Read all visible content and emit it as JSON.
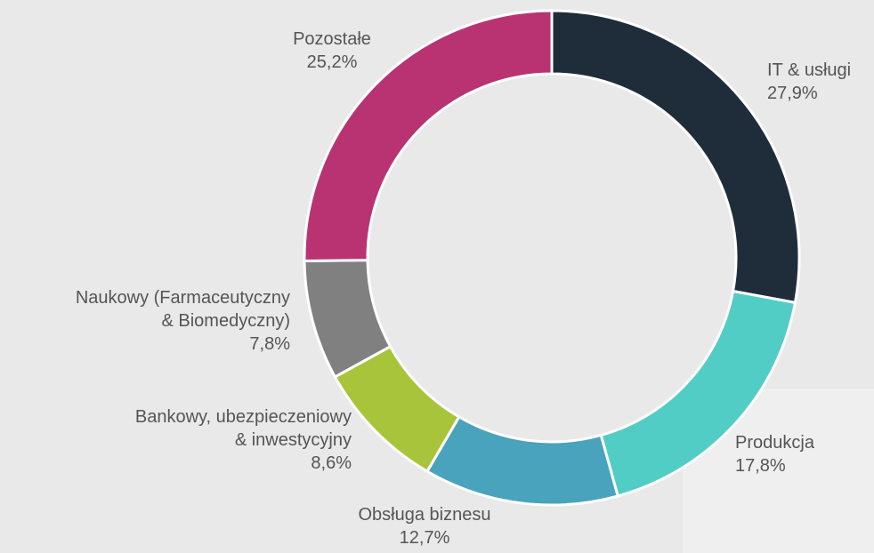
{
  "chart_data": {
    "type": "donut",
    "categories": [
      "IT & usługi",
      "Produkcja",
      "Obsługa biznesu",
      "Bankowy, ubezpieczeniowy\n& inwestycyjny",
      "Naukowy (Farmaceutyczny\n& Biomedyczny)",
      "Pozostałe"
    ],
    "values": [
      27.9,
      17.8,
      12.7,
      8.6,
      7.8,
      25.2
    ],
    "value_labels": [
      "27,9%",
      "17,8%",
      "12,7%",
      "8,6%",
      "7,8%",
      "25,2%"
    ],
    "colors": [
      "#1f2d3b",
      "#52cdc5",
      "#4aa3bd",
      "#a8c43a",
      "#808080",
      "#b93373"
    ]
  }
}
